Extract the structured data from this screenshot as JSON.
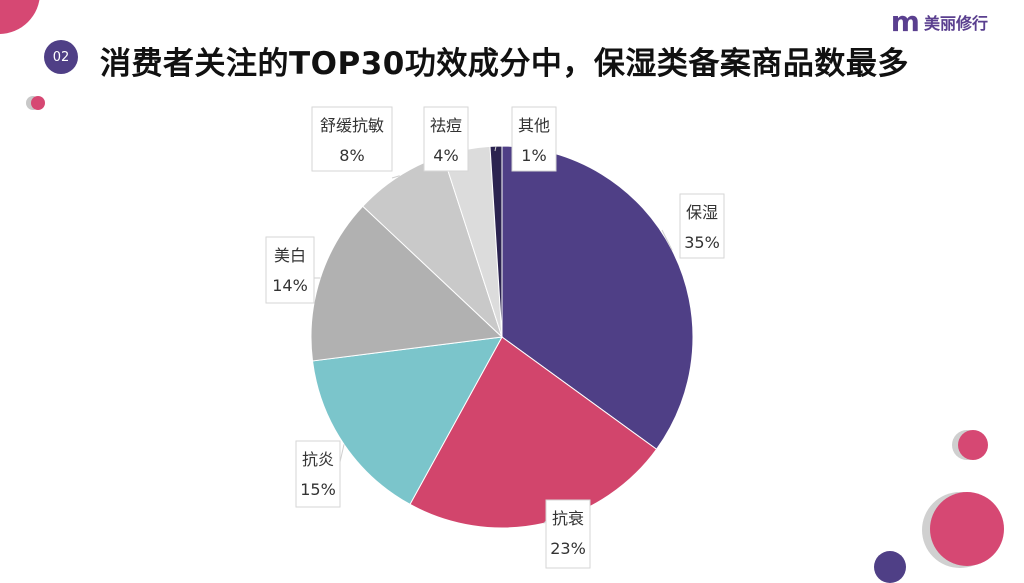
{
  "header": {
    "badge": "02",
    "title": "消费者关注的TOP30功效成分中，保湿类备案商品数最多",
    "logo_text": "美丽修行",
    "logo_mark": "m"
  },
  "colors": {
    "accent_purple": "#4f3f86",
    "accent_pink": "#d24b72"
  },
  "chart_data": {
    "type": "pie",
    "title": "",
    "slices": [
      {
        "name": "保湿",
        "value": 35,
        "label": "35%",
        "color": "#4f3f86"
      },
      {
        "name": "抗衰",
        "value": 23,
        "label": "23%",
        "color": "#d2456c"
      },
      {
        "name": "抗炎",
        "value": 15,
        "label": "15%",
        "color": "#7bc5cb"
      },
      {
        "name": "美白",
        "value": 14,
        "label": "14%",
        "color": "#b1b1b1"
      },
      {
        "name": "舒缓抗敏",
        "value": 8,
        "label": "8%",
        "color": "#c9c9c9"
      },
      {
        "name": "祛痘",
        "value": 4,
        "label": "4%",
        "color": "#dcdcdc"
      },
      {
        "name": "其他",
        "value": 1,
        "label": "1%",
        "color": "#2b2350"
      }
    ]
  }
}
